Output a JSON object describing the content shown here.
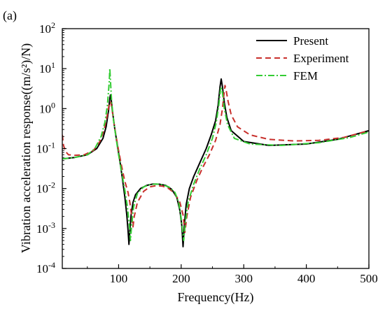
{
  "panel_label": "(a)",
  "chart_data": {
    "type": "line",
    "title": "",
    "xlabel": "Frequency(Hz)",
    "ylabel": "Vibration acceleration response((m/s²)/N)",
    "xlim": [
      10,
      500
    ],
    "ylim": [
      0.0001,
      100
    ],
    "yscale": "log",
    "xticks": [
      100,
      200,
      300,
      400,
      500
    ],
    "xtick_labels": [
      "100",
      "200",
      "300",
      "400",
      "500"
    ],
    "yticks": [
      0.0001,
      0.001,
      0.01,
      0.1,
      1,
      10,
      100
    ],
    "ytick_exponents": [
      "-4",
      "-3",
      "-2",
      "-1",
      "0",
      "1",
      "2"
    ],
    "ytick_base": "10",
    "grid": false,
    "legend_position": "top-right",
    "series": [
      {
        "name": "Present",
        "color": "#000000",
        "dash": "solid",
        "points": [
          [
            10,
            0.055
          ],
          [
            30,
            0.06
          ],
          [
            50,
            0.07
          ],
          [
            65,
            0.1
          ],
          [
            75,
            0.18
          ],
          [
            80,
            0.35
          ],
          [
            84,
            0.9
          ],
          [
            86,
            1.8
          ],
          [
            87,
            2.2
          ],
          [
            88,
            1.8
          ],
          [
            90,
            0.9
          ],
          [
            94,
            0.3
          ],
          [
            98,
            0.12
          ],
          [
            102,
            0.05
          ],
          [
            106,
            0.018
          ],
          [
            110,
            0.006
          ],
          [
            113,
            0.0022
          ],
          [
            115,
            0.0009
          ],
          [
            116.5,
            0.0004
          ],
          [
            118,
            0.0009
          ],
          [
            120,
            0.0022
          ],
          [
            123,
            0.0045
          ],
          [
            127,
            0.007
          ],
          [
            135,
            0.01
          ],
          [
            145,
            0.012
          ],
          [
            155,
            0.013
          ],
          [
            165,
            0.0128
          ],
          [
            175,
            0.012
          ],
          [
            185,
            0.0095
          ],
          [
            193,
            0.006
          ],
          [
            198,
            0.0028
          ],
          [
            201,
            0.0012
          ],
          [
            203,
            0.00035
          ],
          [
            205,
            0.0012
          ],
          [
            208,
            0.004
          ],
          [
            213,
            0.01
          ],
          [
            220,
            0.02
          ],
          [
            230,
            0.045
          ],
          [
            240,
            0.1
          ],
          [
            248,
            0.22
          ],
          [
            255,
            0.5
          ],
          [
            259,
            1.2
          ],
          [
            262,
            3.5
          ],
          [
            264,
            5.5
          ],
          [
            266,
            3.5
          ],
          [
            269,
            1.4
          ],
          [
            273,
            0.6
          ],
          [
            280,
            0.28
          ],
          [
            300,
            0.15
          ],
          [
            340,
            0.12
          ],
          [
            400,
            0.13
          ],
          [
            450,
            0.17
          ],
          [
            500,
            0.28
          ]
        ]
      },
      {
        "name": "Experiment",
        "color": "#c8302c",
        "dash": "dashed",
        "points": [
          [
            10,
            0.22
          ],
          [
            12,
            0.12
          ],
          [
            15,
            0.085
          ],
          [
            20,
            0.07
          ],
          [
            30,
            0.068
          ],
          [
            45,
            0.07
          ],
          [
            60,
            0.09
          ],
          [
            70,
            0.15
          ],
          [
            77,
            0.3
          ],
          [
            82,
            0.7
          ],
          [
            85,
            1.3
          ],
          [
            87,
            1.5
          ],
          [
            89,
            1.1
          ],
          [
            92,
            0.5
          ],
          [
            96,
            0.2
          ],
          [
            100,
            0.09
          ],
          [
            105,
            0.035
          ],
          [
            110,
            0.015
          ],
          [
            115,
            0.008
          ],
          [
            118,
            0.0045
          ],
          [
            121,
            0.002
          ],
          [
            123,
            0.0011
          ],
          [
            125,
            0.002
          ],
          [
            130,
            0.0045
          ],
          [
            140,
            0.0085
          ],
          [
            150,
            0.011
          ],
          [
            160,
            0.0118
          ],
          [
            170,
            0.0115
          ],
          [
            180,
            0.01
          ],
          [
            190,
            0.0075
          ],
          [
            198,
            0.0045
          ],
          [
            203,
            0.0022
          ],
          [
            206,
            0.0008
          ],
          [
            209,
            0.002
          ],
          [
            215,
            0.006
          ],
          [
            225,
            0.016
          ],
          [
            235,
            0.035
          ],
          [
            245,
            0.07
          ],
          [
            255,
            0.16
          ],
          [
            262,
            0.4
          ],
          [
            266,
            1.0
          ],
          [
            268,
            2.0
          ],
          [
            270,
            3.8
          ],
          [
            272,
            2.8
          ],
          [
            275,
            1.5
          ],
          [
            280,
            0.7
          ],
          [
            290,
            0.35
          ],
          [
            310,
            0.22
          ],
          [
            340,
            0.17
          ],
          [
            380,
            0.155
          ],
          [
            420,
            0.16
          ],
          [
            460,
            0.19
          ],
          [
            500,
            0.28
          ]
        ]
      },
      {
        "name": "FEM",
        "color": "#33cc33",
        "dash": "dashdot",
        "points": [
          [
            10,
            0.055
          ],
          [
            30,
            0.06
          ],
          [
            50,
            0.07
          ],
          [
            62,
            0.1
          ],
          [
            72,
            0.2
          ],
          [
            78,
            0.45
          ],
          [
            82,
            1.2
          ],
          [
            85,
            4.5
          ],
          [
            86,
            10
          ],
          [
            87,
            5
          ],
          [
            89,
            1.4
          ],
          [
            92,
            0.5
          ],
          [
            96,
            0.18
          ],
          [
            100,
            0.07
          ],
          [
            105,
            0.025
          ],
          [
            110,
            0.009
          ],
          [
            114,
            0.0035
          ],
          [
            117,
            0.0013
          ],
          [
            119,
            0.0005
          ],
          [
            121,
            0.0013
          ],
          [
            124,
            0.0035
          ],
          [
            130,
            0.0075
          ],
          [
            140,
            0.011
          ],
          [
            150,
            0.0125
          ],
          [
            160,
            0.013
          ],
          [
            170,
            0.0125
          ],
          [
            180,
            0.011
          ],
          [
            190,
            0.008
          ],
          [
            196,
            0.0045
          ],
          [
            200,
            0.0018
          ],
          [
            204,
            0.0005
          ],
          [
            207,
            0.0016
          ],
          [
            211,
            0.0045
          ],
          [
            220,
            0.013
          ],
          [
            230,
            0.032
          ],
          [
            240,
            0.07
          ],
          [
            250,
            0.18
          ],
          [
            256,
            0.45
          ],
          [
            260,
            1.2
          ],
          [
            263,
            3.2
          ],
          [
            264,
            3.5
          ],
          [
            266,
            2.5
          ],
          [
            269,
            1.0
          ],
          [
            274,
            0.4
          ],
          [
            285,
            0.18
          ],
          [
            310,
            0.13
          ],
          [
            360,
            0.12
          ],
          [
            420,
            0.14
          ],
          [
            470,
            0.19
          ],
          [
            500,
            0.26
          ]
        ]
      }
    ]
  }
}
